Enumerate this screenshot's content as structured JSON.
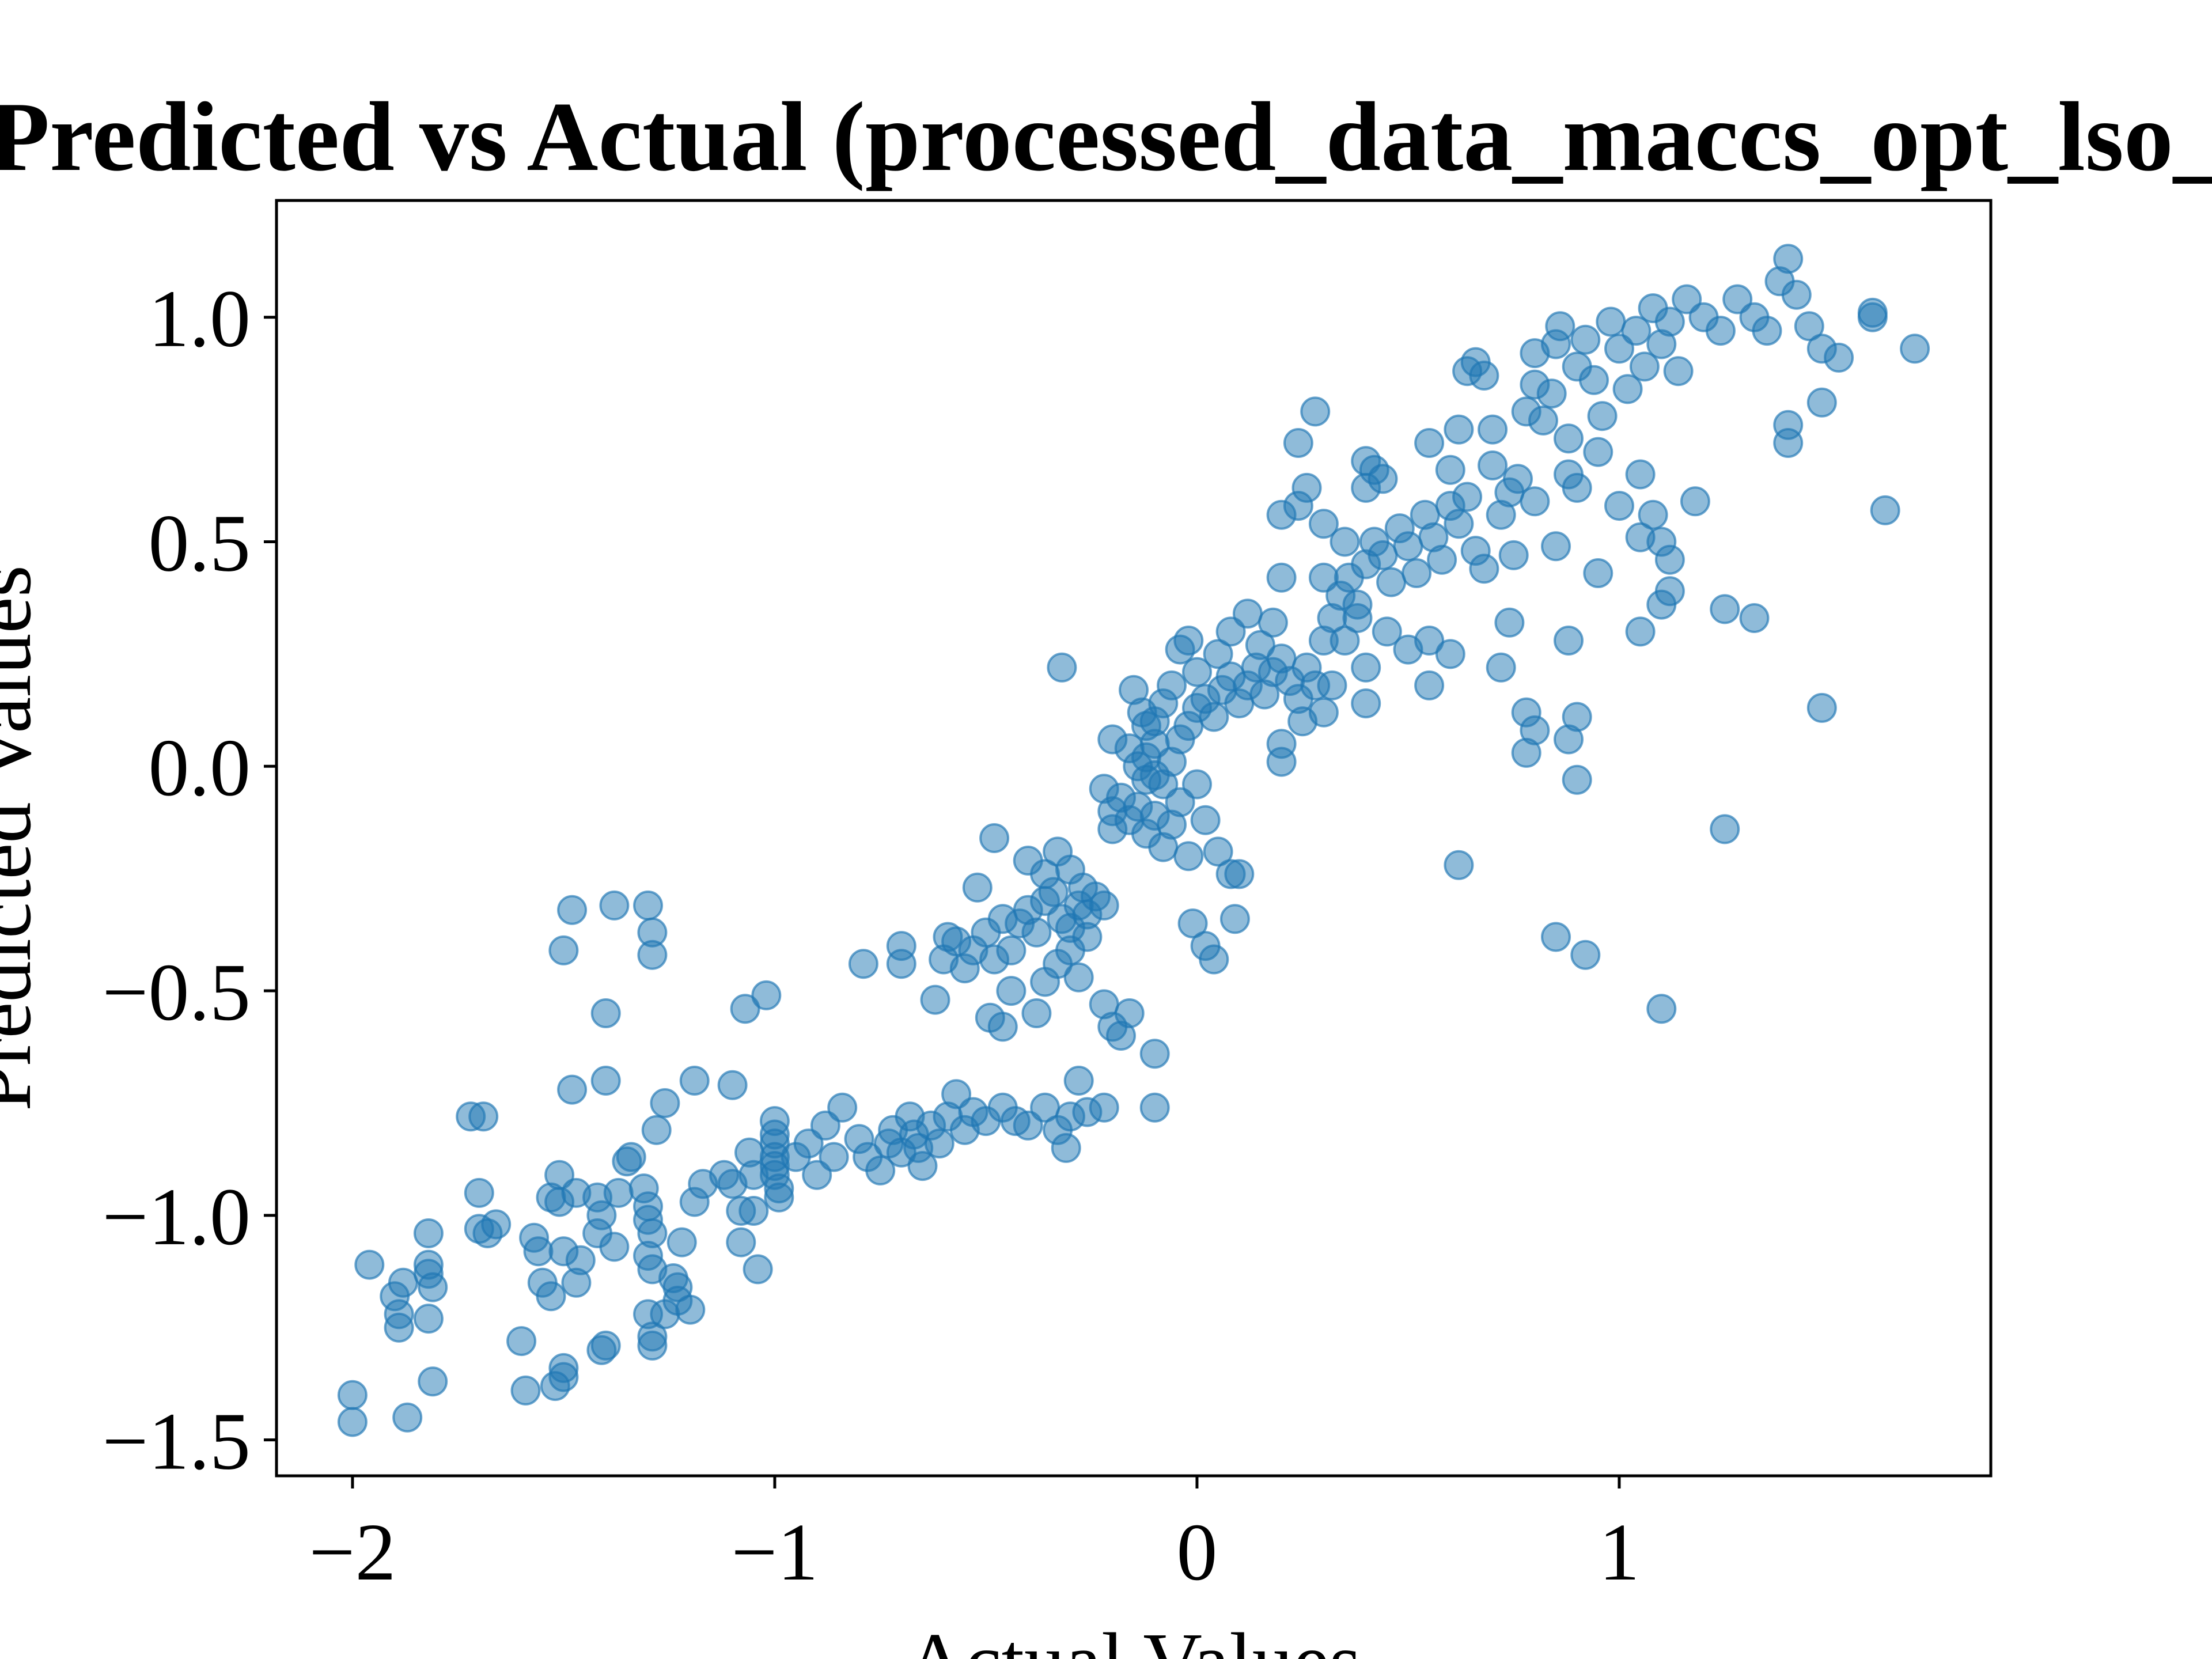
{
  "chart_data": {
    "type": "scatter",
    "title": "Predicted vs Actual (processed_data_maccs_opt_lso_",
    "xlabel": "Actual Values",
    "ylabel": "Predicted Values",
    "xlim": [
      -2.18,
      1.88
    ],
    "ylim": [
      -1.58,
      1.26
    ],
    "xticks": [
      -2,
      -1,
      0,
      1
    ],
    "xtick_labels": [
      "−2",
      "−1",
      "0",
      "1"
    ],
    "yticks": [
      -1.5,
      -1.0,
      -0.5,
      0.0,
      0.5,
      1.0
    ],
    "ytick_labels": [
      "−1.5",
      "−1.0",
      "−0.5",
      "0.0",
      "0.5",
      "1.0"
    ],
    "grid": false,
    "marker_color": "#1f77b4",
    "marker_alpha": 0.5,
    "points": [
      [
        -2.0,
        -1.4
      ],
      [
        -2.0,
        -1.46
      ],
      [
        -1.96,
        -1.11
      ],
      [
        -1.9,
        -1.18
      ],
      [
        -1.89,
        -1.22
      ],
      [
        -1.89,
        -1.25
      ],
      [
        -1.88,
        -1.15
      ],
      [
        -1.87,
        -1.45
      ],
      [
        -1.82,
        -1.04
      ],
      [
        -1.82,
        -1.11
      ],
      [
        -1.82,
        -1.13
      ],
      [
        -1.81,
        -1.16
      ],
      [
        -1.82,
        -1.23
      ],
      [
        -1.81,
        -1.37
      ],
      [
        -1.72,
        -0.78
      ],
      [
        -1.69,
        -0.78
      ],
      [
        -1.7,
        -0.95
      ],
      [
        -1.7,
        -1.03
      ],
      [
        -1.68,
        -1.04
      ],
      [
        -1.66,
        -1.02
      ],
      [
        -1.6,
        -1.28
      ],
      [
        -1.59,
        -1.39
      ],
      [
        -1.57,
        -1.05
      ],
      [
        -1.56,
        -1.08
      ],
      [
        -1.55,
        -1.15
      ],
      [
        -1.53,
        -0.96
      ],
      [
        -1.53,
        -1.18
      ],
      [
        -1.51,
        -0.91
      ],
      [
        -1.51,
        -0.97
      ],
      [
        -1.5,
        -1.08
      ],
      [
        -1.5,
        -1.34
      ],
      [
        -1.5,
        -1.36
      ],
      [
        -1.52,
        -1.38
      ],
      [
        -1.47,
        -0.95
      ],
      [
        -1.46,
        -1.1
      ],
      [
        -1.47,
        -1.15
      ],
      [
        -1.42,
        -0.96
      ],
      [
        -1.41,
        -1.0
      ],
      [
        -1.42,
        -1.04
      ],
      [
        -1.41,
        -1.3
      ],
      [
        -1.4,
        -1.29
      ],
      [
        -1.38,
        -1.07
      ],
      [
        -1.37,
        -0.95
      ],
      [
        -1.35,
        -0.88
      ],
      [
        -1.34,
        -0.87
      ],
      [
        -1.31,
        -0.94
      ],
      [
        -1.3,
        -0.98
      ],
      [
        -1.3,
        -1.01
      ],
      [
        -1.29,
        -1.04
      ],
      [
        -1.3,
        -1.09
      ],
      [
        -1.29,
        -1.12
      ],
      [
        -1.3,
        -1.22
      ],
      [
        -1.29,
        -1.27
      ],
      [
        -1.29,
        -1.29
      ],
      [
        -1.26,
        -1.22
      ],
      [
        -1.24,
        -1.14
      ],
      [
        -1.23,
        -1.16
      ],
      [
        -1.23,
        -1.19
      ],
      [
        -1.22,
        -1.06
      ],
      [
        -1.2,
        -1.21
      ],
      [
        -1.19,
        -0.97
      ],
      [
        -1.17,
        -0.93
      ],
      [
        -1.12,
        -0.91
      ],
      [
        -1.1,
        -0.93
      ],
      [
        -1.08,
        -0.99
      ],
      [
        -1.08,
        -1.06
      ],
      [
        -1.06,
        -0.86
      ],
      [
        -1.05,
        -0.91
      ],
      [
        -1.05,
        -0.99
      ],
      [
        -1.04,
        -1.12
      ],
      [
        -1.0,
        -0.79
      ],
      [
        -1.0,
        -0.82
      ],
      [
        -1.0,
        -0.84
      ],
      [
        -1.0,
        -0.87
      ],
      [
        -1.0,
        -0.89
      ],
      [
        -1.0,
        -0.91
      ],
      [
        -0.99,
        -0.94
      ],
      [
        -0.99,
        -0.96
      ],
      [
        -1.5,
        -0.41
      ],
      [
        -1.48,
        -0.32
      ],
      [
        -1.38,
        -0.31
      ],
      [
        -1.4,
        -0.55
      ],
      [
        -1.4,
        -0.7
      ],
      [
        -1.48,
        -0.72
      ],
      [
        -1.3,
        -0.31
      ],
      [
        -1.29,
        -0.37
      ],
      [
        -1.29,
        -0.42
      ],
      [
        -1.28,
        -0.81
      ],
      [
        -1.26,
        -0.75
      ],
      [
        -1.19,
        -0.7
      ],
      [
        -1.1,
        -0.71
      ],
      [
        -1.07,
        -0.54
      ],
      [
        -1.02,
        -0.51
      ],
      [
        -0.95,
        -0.87
      ],
      [
        -0.92,
        -0.84
      ],
      [
        -0.9,
        -0.91
      ],
      [
        -0.88,
        -0.8
      ],
      [
        -0.86,
        -0.87
      ],
      [
        -0.84,
        -0.76
      ],
      [
        -0.8,
        -0.83
      ],
      [
        -0.78,
        -0.87
      ],
      [
        -0.75,
        -0.9
      ],
      [
        -0.73,
        -0.84
      ],
      [
        -0.72,
        -0.81
      ],
      [
        -0.7,
        -0.86
      ],
      [
        -0.68,
        -0.78
      ],
      [
        -0.67,
        -0.82
      ],
      [
        -0.66,
        -0.85
      ],
      [
        -0.65,
        -0.89
      ],
      [
        -0.63,
        -0.8
      ],
      [
        -0.61,
        -0.84
      ],
      [
        -0.59,
        -0.78
      ],
      [
        -0.57,
        -0.73
      ],
      [
        -0.55,
        -0.81
      ],
      [
        -0.53,
        -0.77
      ],
      [
        -0.5,
        -0.79
      ],
      [
        -0.46,
        -0.76
      ],
      [
        -0.43,
        -0.79
      ],
      [
        -0.4,
        -0.8
      ],
      [
        -0.36,
        -0.76
      ],
      [
        -0.33,
        -0.81
      ],
      [
        -0.31,
        -0.85
      ],
      [
        -0.3,
        -0.78
      ],
      [
        -0.28,
        -0.7
      ],
      [
        -0.26,
        -0.77
      ],
      [
        -0.22,
        -0.76
      ],
      [
        -0.79,
        -0.44
      ],
      [
        -0.7,
        -0.4
      ],
      [
        -0.7,
        -0.44
      ],
      [
        -0.62,
        -0.52
      ],
      [
        -0.6,
        -0.43
      ],
      [
        -0.59,
        -0.38
      ],
      [
        -0.57,
        -0.39
      ],
      [
        -0.55,
        -0.45
      ],
      [
        -0.53,
        -0.41
      ],
      [
        -0.5,
        -0.37
      ],
      [
        -0.48,
        -0.43
      ],
      [
        -0.46,
        -0.34
      ],
      [
        -0.44,
        -0.41
      ],
      [
        -0.42,
        -0.35
      ],
      [
        -0.4,
        -0.32
      ],
      [
        -0.38,
        -0.37
      ],
      [
        -0.36,
        -0.3
      ],
      [
        -0.34,
        -0.28
      ],
      [
        -0.32,
        -0.34
      ],
      [
        -0.3,
        -0.36
      ],
      [
        -0.28,
        -0.31
      ],
      [
        -0.26,
        -0.33
      ],
      [
        -0.24,
        -0.29
      ],
      [
        -0.49,
        -0.56
      ],
      [
        -0.46,
        -0.58
      ],
      [
        -0.44,
        -0.5
      ],
      [
        -0.38,
        -0.55
      ],
      [
        -0.36,
        -0.48
      ],
      [
        -0.33,
        -0.44
      ],
      [
        -0.3,
        -0.41
      ],
      [
        -0.28,
        -0.47
      ],
      [
        -0.26,
        -0.38
      ],
      [
        -0.22,
        -0.31
      ],
      [
        -0.48,
        -0.16
      ],
      [
        -0.4,
        -0.21
      ],
      [
        -0.36,
        -0.24
      ],
      [
        -0.33,
        -0.19
      ],
      [
        -0.3,
        -0.23
      ],
      [
        -0.27,
        -0.27
      ],
      [
        -0.52,
        -0.27
      ],
      [
        -0.22,
        -0.53
      ],
      [
        -0.2,
        -0.58
      ],
      [
        -0.18,
        -0.6
      ],
      [
        -0.16,
        -0.55
      ],
      [
        -0.1,
        -0.64
      ],
      [
        -0.1,
        -0.76
      ],
      [
        -0.32,
        0.22
      ],
      [
        -0.15,
        0.17
      ],
      [
        -0.13,
        0.12
      ],
      [
        -0.12,
        0.09
      ],
      [
        -0.1,
        0.05
      ],
      [
        -0.12,
        0.02
      ],
      [
        -0.1,
        -0.02
      ],
      [
        -0.08,
        -0.04
      ],
      [
        -0.06,
        0.01
      ],
      [
        -0.04,
        0.06
      ],
      [
        -0.02,
        0.09
      ],
      [
        0.0,
        0.13
      ],
      [
        0.02,
        0.15
      ],
      [
        0.04,
        0.11
      ],
      [
        0.06,
        0.17
      ],
      [
        0.08,
        0.2
      ],
      [
        0.1,
        0.14
      ],
      [
        0.12,
        0.18
      ],
      [
        0.14,
        0.22
      ],
      [
        0.16,
        0.16
      ],
      [
        0.18,
        0.21
      ],
      [
        0.2,
        0.24
      ],
      [
        0.22,
        0.19
      ],
      [
        0.24,
        0.15
      ],
      [
        0.26,
        0.22
      ],
      [
        0.28,
        0.18
      ],
      [
        -0.22,
        -0.05
      ],
      [
        -0.2,
        -0.1
      ],
      [
        -0.2,
        -0.14
      ],
      [
        -0.18,
        -0.07
      ],
      [
        -0.16,
        -0.12
      ],
      [
        -0.14,
        -0.09
      ],
      [
        -0.12,
        -0.15
      ],
      [
        -0.1,
        -0.11
      ],
      [
        -0.08,
        -0.18
      ],
      [
        -0.06,
        -0.13
      ],
      [
        -0.04,
        -0.08
      ],
      [
        -0.02,
        -0.2
      ],
      [
        0.0,
        -0.04
      ],
      [
        0.02,
        -0.12
      ],
      [
        0.05,
        -0.19
      ],
      [
        0.08,
        -0.24
      ],
      [
        0.1,
        -0.24
      ],
      [
        0.09,
        -0.34
      ],
      [
        -0.01,
        -0.35
      ],
      [
        0.02,
        -0.4
      ],
      [
        0.04,
        -0.43
      ],
      [
        -0.2,
        0.06
      ],
      [
        -0.16,
        0.04
      ],
      [
        -0.14,
        0.0
      ],
      [
        -0.12,
        -0.03
      ],
      [
        -0.1,
        0.1
      ],
      [
        -0.08,
        0.14
      ],
      [
        -0.06,
        0.18
      ],
      [
        -0.04,
        0.26
      ],
      [
        -0.02,
        0.28
      ],
      [
        0.0,
        0.21
      ],
      [
        0.05,
        0.25
      ],
      [
        0.08,
        0.3
      ],
      [
        0.12,
        0.34
      ],
      [
        0.15,
        0.27
      ],
      [
        0.18,
        0.32
      ],
      [
        0.2,
        0.05
      ],
      [
        0.2,
        0.01
      ],
      [
        0.25,
        0.1
      ],
      [
        0.3,
        0.12
      ],
      [
        0.32,
        0.18
      ],
      [
        0.3,
        0.28
      ],
      [
        0.32,
        0.33
      ],
      [
        0.34,
        0.38
      ],
      [
        0.36,
        0.42
      ],
      [
        0.38,
        0.36
      ],
      [
        0.4,
        0.45
      ],
      [
        0.42,
        0.5
      ],
      [
        0.44,
        0.47
      ],
      [
        0.46,
        0.41
      ],
      [
        0.48,
        0.53
      ],
      [
        0.5,
        0.49
      ],
      [
        0.52,
        0.43
      ],
      [
        0.54,
        0.56
      ],
      [
        0.56,
        0.51
      ],
      [
        0.58,
        0.46
      ],
      [
        0.6,
        0.58
      ],
      [
        0.62,
        0.54
      ],
      [
        0.64,
        0.6
      ],
      [
        0.66,
        0.48
      ],
      [
        0.68,
        0.44
      ],
      [
        0.2,
        0.56
      ],
      [
        0.24,
        0.58
      ],
      [
        0.26,
        0.62
      ],
      [
        0.28,
        0.79
      ],
      [
        0.24,
        0.72
      ],
      [
        0.3,
        0.54
      ],
      [
        0.35,
        0.5
      ],
      [
        0.4,
        0.62
      ],
      [
        0.4,
        0.68
      ],
      [
        0.42,
        0.66
      ],
      [
        0.44,
        0.64
      ],
      [
        0.3,
        0.42
      ],
      [
        0.35,
        0.28
      ],
      [
        0.38,
        0.33
      ],
      [
        0.4,
        0.22
      ],
      [
        0.45,
        0.3
      ],
      [
        0.5,
        0.26
      ],
      [
        0.55,
        0.28
      ],
      [
        0.6,
        0.25
      ],
      [
        0.55,
        0.18
      ],
      [
        0.4,
        0.14
      ],
      [
        0.2,
        0.42
      ],
      [
        0.55,
        0.72
      ],
      [
        0.6,
        0.66
      ],
      [
        0.62,
        0.75
      ],
      [
        0.64,
        0.88
      ],
      [
        0.66,
        0.9
      ],
      [
        0.68,
        0.87
      ],
      [
        0.7,
        0.75
      ],
      [
        0.7,
        0.67
      ],
      [
        0.72,
        0.56
      ],
      [
        0.74,
        0.61
      ],
      [
        0.75,
        0.47
      ],
      [
        0.76,
        0.64
      ],
      [
        0.78,
        0.79
      ],
      [
        0.8,
        0.85
      ],
      [
        0.8,
        0.92
      ],
      [
        0.82,
        0.77
      ],
      [
        0.84,
        0.83
      ],
      [
        0.85,
        0.94
      ],
      [
        0.86,
        0.98
      ],
      [
        0.88,
        0.73
      ],
      [
        0.88,
        0.65
      ],
      [
        0.9,
        0.89
      ],
      [
        0.92,
        0.95
      ],
      [
        0.94,
        0.86
      ],
      [
        0.96,
        0.78
      ],
      [
        0.98,
        0.99
      ],
      [
        1.0,
        0.93
      ],
      [
        1.02,
        0.84
      ],
      [
        1.04,
        0.97
      ],
      [
        1.06,
        0.89
      ],
      [
        1.08,
        1.02
      ],
      [
        1.1,
        0.94
      ],
      [
        1.12,
        0.99
      ],
      [
        1.14,
        0.88
      ],
      [
        1.16,
        1.04
      ],
      [
        1.2,
        1.0
      ],
      [
        1.24,
        0.97
      ],
      [
        1.28,
        1.04
      ],
      [
        1.32,
        1.0
      ],
      [
        1.35,
        0.97
      ],
      [
        1.38,
        1.08
      ],
      [
        1.4,
        1.13
      ],
      [
        1.42,
        1.05
      ],
      [
        1.45,
        0.98
      ],
      [
        1.48,
        0.93
      ],
      [
        0.8,
        0.59
      ],
      [
        0.85,
        0.49
      ],
      [
        0.9,
        0.62
      ],
      [
        0.95,
        0.7
      ],
      [
        1.0,
        0.58
      ],
      [
        1.05,
        0.65
      ],
      [
        1.08,
        0.56
      ],
      [
        1.1,
        0.5
      ],
      [
        1.12,
        0.46
      ],
      [
        0.88,
        0.28
      ],
      [
        0.95,
        0.43
      ],
      [
        0.74,
        0.32
      ],
      [
        0.72,
        0.22
      ],
      [
        0.78,
        0.12
      ],
      [
        0.8,
        0.08
      ],
      [
        0.78,
        0.03
      ],
      [
        0.88,
        0.06
      ],
      [
        0.9,
        -0.03
      ],
      [
        0.9,
        0.11
      ],
      [
        1.05,
        0.51
      ],
      [
        1.05,
        0.3
      ],
      [
        1.1,
        0.36
      ],
      [
        1.12,
        0.39
      ],
      [
        1.18,
        0.59
      ],
      [
        1.25,
        0.35
      ],
      [
        1.32,
        0.33
      ],
      [
        1.4,
        0.76
      ],
      [
        1.4,
        0.72
      ],
      [
        1.48,
        0.81
      ],
      [
        1.52,
        0.91
      ],
      [
        1.6,
        1.0
      ],
      [
        1.6,
        1.01
      ],
      [
        1.7,
        0.93
      ],
      [
        1.63,
        0.57
      ],
      [
        1.48,
        0.13
      ],
      [
        1.25,
        -0.14
      ],
      [
        0.62,
        -0.22
      ],
      [
        0.85,
        -0.38
      ],
      [
        0.92,
        -0.42
      ],
      [
        1.1,
        -0.54
      ]
    ]
  }
}
